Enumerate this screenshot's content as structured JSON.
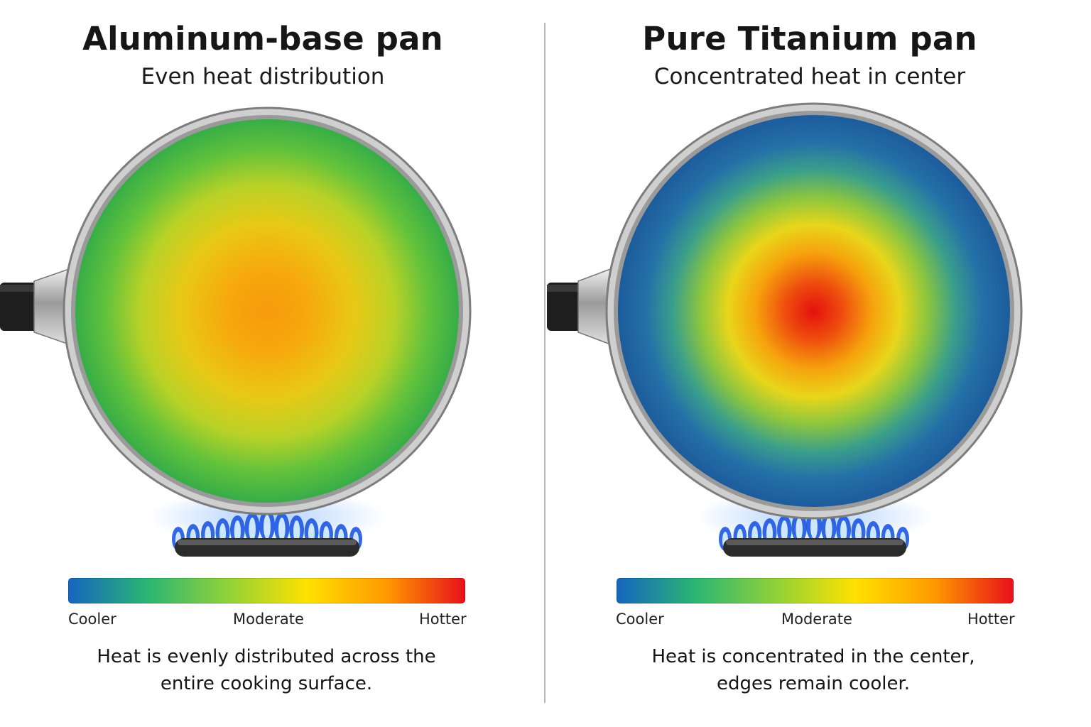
{
  "panels": [
    {
      "title": "Aluminum-base pan",
      "subtitle": "Even heat distribution",
      "heat_pattern": "even",
      "colors": {
        "center": "#f7a10c",
        "mid": "#e8cf18",
        "edge": "#3db94c"
      },
      "legend": {
        "low": "Cooler",
        "mid": "Moderate",
        "high": "Hotter"
      },
      "caption_lines": [
        "Heat is evenly distributed across the",
        "entire cooking surface."
      ]
    },
    {
      "title": "Pure Titanium pan",
      "subtitle": "Concentrated heat in center",
      "heat_pattern": "concentrated",
      "colors": {
        "center": "#e3140f",
        "mid": "#f0d119",
        "edge": "#1f5fa6"
      },
      "legend": {
        "low": "Cooler",
        "mid": "Moderate",
        "high": "Hotter"
      },
      "caption_lines": [
        "Heat is concentrated in the center,",
        "edges remain cooler."
      ]
    }
  ],
  "legend_scale": [
    "#1565c0",
    "#2bb673",
    "#8fd13a",
    "#ffe100",
    "#ff9a00",
    "#e8101a"
  ],
  "icons": [
    "frying-pan-icon",
    "gas-burner-icon"
  ]
}
